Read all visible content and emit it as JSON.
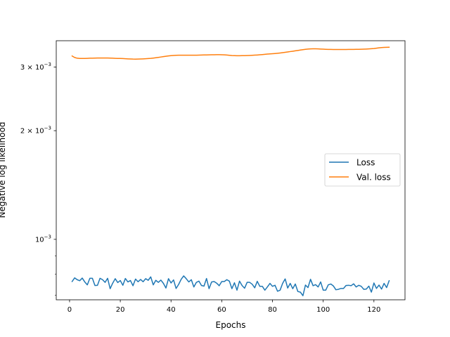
{
  "chart_data": {
    "type": "line",
    "title": "",
    "xlabel": "Epochs",
    "ylabel": "Negative log likelihood",
    "yscale": "log",
    "xlim": [
      -5.25,
      132.25
    ],
    "ylim": [
      0.00068,
      0.00355
    ],
    "grid": false,
    "legend_position": "center-right",
    "x_ticks": [
      0,
      20,
      40,
      60,
      80,
      100,
      120
    ],
    "y_ticks": [
      {
        "value": 0.001,
        "label": "10",
        "exp": "−3"
      },
      {
        "value": 0.002,
        "label": "2 × 10",
        "exp": "−3"
      },
      {
        "value": 0.003,
        "label": "3 × 10",
        "exp": "−3"
      }
    ],
    "x": [
      1,
      2,
      3,
      4,
      5,
      6,
      7,
      8,
      9,
      10,
      11,
      12,
      13,
      14,
      15,
      16,
      17,
      18,
      19,
      20,
      21,
      22,
      23,
      24,
      25,
      26,
      27,
      28,
      29,
      30,
      31,
      32,
      33,
      34,
      35,
      36,
      37,
      38,
      39,
      40,
      41,
      42,
      43,
      44,
      45,
      46,
      47,
      48,
      49,
      50,
      51,
      52,
      53,
      54,
      55,
      56,
      57,
      58,
      59,
      60,
      61,
      62,
      63,
      64,
      65,
      66,
      67,
      68,
      69,
      70,
      71,
      72,
      73,
      74,
      75,
      76,
      77,
      78,
      79,
      80,
      81,
      82,
      83,
      84,
      85,
      86,
      87,
      88,
      89,
      90,
      91,
      92,
      93,
      94,
      95,
      96,
      97,
      98,
      99,
      100,
      101,
      102,
      103,
      104,
      105,
      106,
      107,
      108,
      109,
      110,
      111,
      112,
      113,
      114,
      115,
      116,
      117,
      118,
      119,
      120,
      121,
      122,
      123,
      124,
      125,
      126
    ],
    "series": [
      {
        "name": "Loss",
        "color": "#1f77b4",
        "values": [
          0.000764,
          0.000782,
          0.000773,
          0.000768,
          0.000781,
          0.000762,
          0.000748,
          0.00078,
          0.00078,
          0.000745,
          0.000746,
          0.00078,
          0.000773,
          0.00076,
          0.00078,
          0.00073,
          0.000756,
          0.000778,
          0.000759,
          0.000769,
          0.000746,
          0.000779,
          0.000762,
          0.000769,
          0.000744,
          0.000776,
          0.000763,
          0.000774,
          0.000763,
          0.000778,
          0.00077,
          0.000787,
          0.000748,
          0.00077,
          0.00076,
          0.000771,
          0.000755,
          0.000733,
          0.000778,
          0.000757,
          0.000772,
          0.000731,
          0.00075,
          0.000775,
          0.000792,
          0.000778,
          0.000762,
          0.000773,
          0.000738,
          0.00076,
          0.000766,
          0.000745,
          0.000742,
          0.000779,
          0.00073,
          0.000762,
          0.000764,
          0.000756,
          0.000744,
          0.000764,
          0.000764,
          0.000773,
          0.000766,
          0.00073,
          0.000758,
          0.000723,
          0.000766,
          0.000745,
          0.000732,
          0.00076,
          0.00076,
          0.000751,
          0.000734,
          0.000765,
          0.000741,
          0.000741,
          0.000723,
          0.000738,
          0.000755,
          0.000741,
          0.000746,
          0.000718,
          0.000723,
          0.000755,
          0.000777,
          0.000733,
          0.000755,
          0.00073,
          0.000752,
          0.000717,
          0.000714,
          0.000698,
          0.000747,
          0.000735,
          0.000775,
          0.000744,
          0.000749,
          0.000738,
          0.000762,
          0.000723,
          0.000723,
          0.000748,
          0.000752,
          0.000743,
          0.000725,
          0.000727,
          0.000731,
          0.000731,
          0.000745,
          0.000746,
          0.000744,
          0.000753,
          0.000738,
          0.000746,
          0.000741,
          0.000727,
          0.000728,
          0.000742,
          0.000714,
          0.000757,
          0.000731,
          0.000747,
          0.000728,
          0.000755,
          0.000735,
          0.000768
        ]
      },
      {
        "name": "Val. loss",
        "color": "#ff7f0e",
        "values": [
          0.00322,
          0.00319,
          0.003175,
          0.00317,
          0.00317,
          0.00317,
          0.003172,
          0.003175,
          0.003176,
          0.003178,
          0.00318,
          0.00318,
          0.00318,
          0.00318,
          0.00318,
          0.003178,
          0.003175,
          0.003172,
          0.00317,
          0.00317,
          0.003168,
          0.003165,
          0.003162,
          0.00316,
          0.003158,
          0.003157,
          0.003158,
          0.00316,
          0.003162,
          0.003165,
          0.003168,
          0.003172,
          0.003178,
          0.003185,
          0.003192,
          0.0032,
          0.003208,
          0.003215,
          0.003222,
          0.003228,
          0.003232,
          0.003235,
          0.003236,
          0.003236,
          0.003236,
          0.003236,
          0.003236,
          0.003236,
          0.003236,
          0.003237,
          0.003238,
          0.00324,
          0.003242,
          0.003243,
          0.003244,
          0.003245,
          0.003246,
          0.003247,
          0.003247,
          0.003246,
          0.003244,
          0.00324,
          0.003235,
          0.00323,
          0.003228,
          0.003226,
          0.003226,
          0.003227,
          0.003228,
          0.00323,
          0.003232,
          0.003235,
          0.003238,
          0.003241,
          0.003245,
          0.00325,
          0.003255,
          0.00326,
          0.003264,
          0.003268,
          0.003272,
          0.003277,
          0.003283,
          0.00329,
          0.003297,
          0.003305,
          0.003313,
          0.00332,
          0.003328,
          0.003336,
          0.003345,
          0.003353,
          0.00336,
          0.003366,
          0.00337,
          0.003372,
          0.003372,
          0.00337,
          0.003367,
          0.003364,
          0.003361,
          0.003359,
          0.003358,
          0.003357,
          0.003357,
          0.003357,
          0.003357,
          0.003357,
          0.003357,
          0.003358,
          0.003358,
          0.003359,
          0.00336,
          0.003361,
          0.003362,
          0.003364,
          0.003366,
          0.003369,
          0.003373,
          0.003378,
          0.003385,
          0.003392,
          0.003398,
          0.003402,
          0.003404,
          0.003405
        ]
      }
    ]
  }
}
